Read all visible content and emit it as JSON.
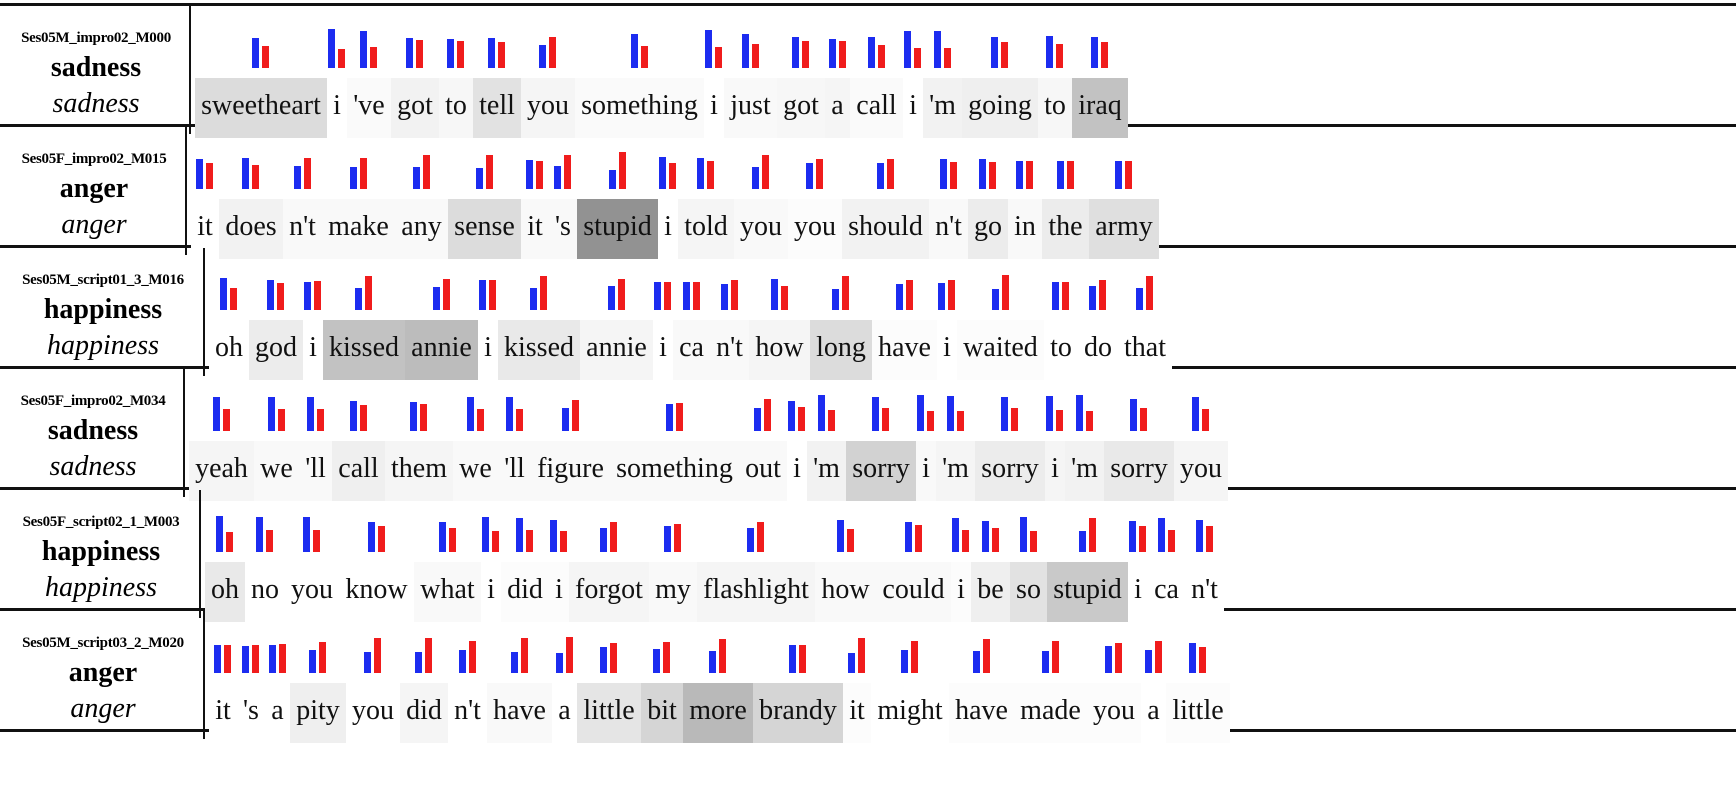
{
  "colors": {
    "blue_bar": "#1c2cf0",
    "red_bar": "#f01c1c",
    "highlight": "#808080"
  },
  "rows": [
    {
      "id": "Ses05M_impro02_M000",
      "true_label": "sadness",
      "pred_label": "sadness",
      "tokens": [
        {
          "w": "sweetheart",
          "hl": 0.22,
          "b": 0.52,
          "r": 0.38
        },
        {
          "w": "i",
          "hl": 0,
          "b": 0.68,
          "r": 0.32
        },
        {
          "w": "'ve",
          "hl": 0.03,
          "b": 0.64,
          "r": 0.36
        },
        {
          "w": "got",
          "hl": 0.08,
          "b": 0.52,
          "r": 0.48
        },
        {
          "w": "to",
          "hl": 0.05,
          "b": 0.5,
          "r": 0.46
        },
        {
          "w": "tell",
          "hl": 0.18,
          "b": 0.52,
          "r": 0.44
        },
        {
          "w": "you",
          "hl": 0.06,
          "b": 0.4,
          "r": 0.54
        },
        {
          "w": "something",
          "hl": 0.03,
          "b": 0.58,
          "r": 0.38
        },
        {
          "w": "i",
          "hl": 0,
          "b": 0.66,
          "r": 0.36
        },
        {
          "w": "just",
          "hl": 0.04,
          "b": 0.58,
          "r": 0.42
        },
        {
          "w": "got",
          "hl": 0.05,
          "b": 0.54,
          "r": 0.46
        },
        {
          "w": "a",
          "hl": 0.06,
          "b": 0.5,
          "r": 0.46
        },
        {
          "w": "call",
          "hl": 0.03,
          "b": 0.54,
          "r": 0.4
        },
        {
          "w": "i",
          "hl": 0,
          "b": 0.64,
          "r": 0.34
        },
        {
          "w": "'m",
          "hl": 0.08,
          "b": 0.64,
          "r": 0.34
        },
        {
          "w": "going",
          "hl": 0.1,
          "b": 0.54,
          "r": 0.44
        },
        {
          "w": "to",
          "hl": 0.05,
          "b": 0.56,
          "r": 0.42
        },
        {
          "w": "iraq",
          "hl": 0.38,
          "b": 0.54,
          "r": 0.44
        }
      ]
    },
    {
      "id": "Ses05F_impro02_M015",
      "true_label": "anger",
      "pred_label": "anger",
      "tokens": [
        {
          "w": "it",
          "hl": 0,
          "b": 0.52,
          "r": 0.44
        },
        {
          "w": "does",
          "hl": 0.08,
          "b": 0.54,
          "r": 0.42
        },
        {
          "w": "n't",
          "hl": 0.04,
          "b": 0.4,
          "r": 0.54
        },
        {
          "w": "make",
          "hl": 0.04,
          "b": 0.38,
          "r": 0.54
        },
        {
          "w": "any",
          "hl": 0.04,
          "b": 0.38,
          "r": 0.58
        },
        {
          "w": "sense",
          "hl": 0.22,
          "b": 0.36,
          "r": 0.58
        },
        {
          "w": "it",
          "hl": 0.04,
          "b": 0.5,
          "r": 0.48
        },
        {
          "w": "'s",
          "hl": 0.04,
          "b": 0.4,
          "r": 0.58
        },
        {
          "w": "stupid",
          "hl": 0.68,
          "b": 0.32,
          "r": 0.64
        },
        {
          "w": "i",
          "hl": 0,
          "b": 0.56,
          "r": 0.44
        },
        {
          "w": "told",
          "hl": 0.06,
          "b": 0.54,
          "r": 0.48
        },
        {
          "w": "you",
          "hl": 0.04,
          "b": 0.38,
          "r": 0.58
        },
        {
          "w": "you",
          "hl": 0.02,
          "b": 0.44,
          "r": 0.52
        },
        {
          "w": "should",
          "hl": 0.08,
          "b": 0.44,
          "r": 0.52
        },
        {
          "w": "n't",
          "hl": 0.04,
          "b": 0.52,
          "r": 0.46
        },
        {
          "w": "go",
          "hl": 0.12,
          "b": 0.52,
          "r": 0.46
        },
        {
          "w": "in",
          "hl": 0.04,
          "b": 0.48,
          "r": 0.48
        },
        {
          "w": "the",
          "hl": 0.12,
          "b": 0.48,
          "r": 0.48
        },
        {
          "w": "army",
          "hl": 0.2,
          "b": 0.48,
          "r": 0.48
        }
      ]
    },
    {
      "id": "Ses05M_script01_3_M016",
      "true_label": "happiness",
      "pred_label": "happiness",
      "tokens": [
        {
          "w": "oh",
          "hl": 0,
          "b": 0.56,
          "r": 0.38
        },
        {
          "w": "god",
          "hl": 0.12,
          "b": 0.52,
          "r": 0.46
        },
        {
          "w": "i",
          "hl": 0,
          "b": 0.48,
          "r": 0.5
        },
        {
          "w": "kissed",
          "hl": 0.38,
          "b": 0.38,
          "r": 0.58
        },
        {
          "w": "annie",
          "hl": 0.42,
          "b": 0.4,
          "r": 0.54
        },
        {
          "w": "i",
          "hl": 0,
          "b": 0.52,
          "r": 0.52
        },
        {
          "w": "kissed",
          "hl": 0.14,
          "b": 0.38,
          "r": 0.58
        },
        {
          "w": "annie",
          "hl": 0.06,
          "b": 0.42,
          "r": 0.54
        },
        {
          "w": "i",
          "hl": 0,
          "b": 0.48,
          "r": 0.48
        },
        {
          "w": "ca",
          "hl": 0.04,
          "b": 0.48,
          "r": 0.48
        },
        {
          "w": "n't",
          "hl": 0.04,
          "b": 0.44,
          "r": 0.52
        },
        {
          "w": "how",
          "hl": 0.06,
          "b": 0.54,
          "r": 0.42
        },
        {
          "w": "long",
          "hl": 0.22,
          "b": 0.36,
          "r": 0.58
        },
        {
          "w": "have",
          "hl": 0.02,
          "b": 0.44,
          "r": 0.52
        },
        {
          "w": "i",
          "hl": 0,
          "b": 0.46,
          "r": 0.52
        },
        {
          "w": "waited",
          "hl": 0.02,
          "b": 0.36,
          "r": 0.6
        },
        {
          "w": "to",
          "hl": 0,
          "b": 0.48,
          "r": 0.48
        },
        {
          "w": "do",
          "hl": 0,
          "b": 0.42,
          "r": 0.52
        },
        {
          "w": "that",
          "hl": 0,
          "b": 0.38,
          "r": 0.58
        }
      ]
    },
    {
      "id": "Ses05F_impro02_M034",
      "true_label": "sadness",
      "pred_label": "sadness",
      "tokens": [
        {
          "w": "yeah",
          "hl": 0.06,
          "b": 0.58,
          "r": 0.38
        },
        {
          "w": "we",
          "hl": 0.04,
          "b": 0.58,
          "r": 0.38
        },
        {
          "w": "'ll",
          "hl": 0.04,
          "b": 0.58,
          "r": 0.38
        },
        {
          "w": "call",
          "hl": 0.1,
          "b": 0.52,
          "r": 0.44
        },
        {
          "w": "them",
          "hl": 0.06,
          "b": 0.5,
          "r": 0.46
        },
        {
          "w": "we",
          "hl": 0.04,
          "b": 0.58,
          "r": 0.38
        },
        {
          "w": "'ll",
          "hl": 0.04,
          "b": 0.58,
          "r": 0.38
        },
        {
          "w": "figure",
          "hl": 0.04,
          "b": 0.4,
          "r": 0.54
        },
        {
          "w": "something",
          "hl": 0.04,
          "b": 0.46,
          "r": 0.48
        },
        {
          "w": "out",
          "hl": 0.04,
          "b": 0.4,
          "r": 0.56
        },
        {
          "w": "i",
          "hl": 0,
          "b": 0.52,
          "r": 0.42
        },
        {
          "w": "'m",
          "hl": 0.08,
          "b": 0.62,
          "r": 0.36
        },
        {
          "w": "sorry",
          "hl": 0.28,
          "b": 0.58,
          "r": 0.4
        },
        {
          "w": "i",
          "hl": 0.04,
          "b": 0.62,
          "r": 0.34
        },
        {
          "w": "'m",
          "hl": 0.06,
          "b": 0.6,
          "r": 0.34
        },
        {
          "w": "sorry",
          "hl": 0.12,
          "b": 0.58,
          "r": 0.4
        },
        {
          "w": "i",
          "hl": 0.06,
          "b": 0.6,
          "r": 0.36
        },
        {
          "w": "'m",
          "hl": 0.08,
          "b": 0.62,
          "r": 0.34
        },
        {
          "w": "sorry",
          "hl": 0.14,
          "b": 0.56,
          "r": 0.4
        },
        {
          "w": "you",
          "hl": 0.06,
          "b": 0.58,
          "r": 0.38
        }
      ]
    },
    {
      "id": "Ses05F_script02_1_M003",
      "true_label": "happiness",
      "pred_label": "happiness",
      "tokens": [
        {
          "w": "oh",
          "hl": 0.14,
          "b": 0.62,
          "r": 0.34
        },
        {
          "w": "no",
          "hl": 0,
          "b": 0.6,
          "r": 0.38
        },
        {
          "w": "you",
          "hl": 0,
          "b": 0.6,
          "r": 0.38
        },
        {
          "w": "know",
          "hl": 0,
          "b": 0.52,
          "r": 0.44
        },
        {
          "w": "what",
          "hl": 0.04,
          "b": 0.52,
          "r": 0.42
        },
        {
          "w": "i",
          "hl": 0,
          "b": 0.6,
          "r": 0.36
        },
        {
          "w": "did",
          "hl": 0.02,
          "b": 0.58,
          "r": 0.38
        },
        {
          "w": "i",
          "hl": 0.02,
          "b": 0.56,
          "r": 0.36
        },
        {
          "w": "forgot",
          "hl": 0.06,
          "b": 0.42,
          "r": 0.52
        },
        {
          "w": "my",
          "hl": 0.04,
          "b": 0.44,
          "r": 0.48
        },
        {
          "w": "flashlight",
          "hl": 0.06,
          "b": 0.42,
          "r": 0.52
        },
        {
          "w": "how",
          "hl": 0.04,
          "b": 0.56,
          "r": 0.4
        },
        {
          "w": "could",
          "hl": 0.04,
          "b": 0.52,
          "r": 0.46
        },
        {
          "w": "i",
          "hl": 0.02,
          "b": 0.58,
          "r": 0.38
        },
        {
          "w": "be",
          "hl": 0.1,
          "b": 0.54,
          "r": 0.42
        },
        {
          "w": "so",
          "hl": 0.18,
          "b": 0.6,
          "r": 0.36
        },
        {
          "w": "stupid",
          "hl": 0.34,
          "b": 0.36,
          "r": 0.58
        },
        {
          "w": "i",
          "hl": 0,
          "b": 0.54,
          "r": 0.44
        },
        {
          "w": "ca",
          "hl": 0,
          "b": 0.58,
          "r": 0.38
        },
        {
          "w": "n't",
          "hl": 0,
          "b": 0.56,
          "r": 0.44
        }
      ]
    },
    {
      "id": "Ses05M_script03_2_M020",
      "true_label": "anger",
      "pred_label": "anger",
      "tokens": [
        {
          "w": "it",
          "hl": 0,
          "b": 0.48,
          "r": 0.48
        },
        {
          "w": "'s",
          "hl": 0,
          "b": 0.46,
          "r": 0.48
        },
        {
          "w": "a",
          "hl": 0,
          "b": 0.48,
          "r": 0.5
        },
        {
          "w": "pity",
          "hl": 0.1,
          "b": 0.4,
          "r": 0.54
        },
        {
          "w": "you",
          "hl": 0,
          "b": 0.36,
          "r": 0.6
        },
        {
          "w": "did",
          "hl": 0.06,
          "b": 0.36,
          "r": 0.6
        },
        {
          "w": "n't",
          "hl": 0,
          "b": 0.4,
          "r": 0.56
        },
        {
          "w": "have",
          "hl": 0.04,
          "b": 0.36,
          "r": 0.6
        },
        {
          "w": "a",
          "hl": 0,
          "b": 0.34,
          "r": 0.62
        },
        {
          "w": "little",
          "hl": 0.16,
          "b": 0.44,
          "r": 0.52
        },
        {
          "w": "bit",
          "hl": 0.26,
          "b": 0.42,
          "r": 0.54
        },
        {
          "w": "more",
          "hl": 0.44,
          "b": 0.38,
          "r": 0.58
        },
        {
          "w": "brandy",
          "hl": 0.26,
          "b": 0.48,
          "r": 0.48
        },
        {
          "w": "it",
          "hl": 0.02,
          "b": 0.34,
          "r": 0.6
        },
        {
          "w": "might",
          "hl": 0,
          "b": 0.4,
          "r": 0.56
        },
        {
          "w": "have",
          "hl": 0.02,
          "b": 0.38,
          "r": 0.58
        },
        {
          "w": "made",
          "hl": 0.02,
          "b": 0.38,
          "r": 0.56
        },
        {
          "w": "you",
          "hl": 0.02,
          "b": 0.46,
          "r": 0.52
        },
        {
          "w": "a",
          "hl": 0,
          "b": 0.4,
          "r": 0.56
        },
        {
          "w": "little",
          "hl": 0.02,
          "b": 0.52,
          "r": 0.44
        }
      ]
    }
  ]
}
